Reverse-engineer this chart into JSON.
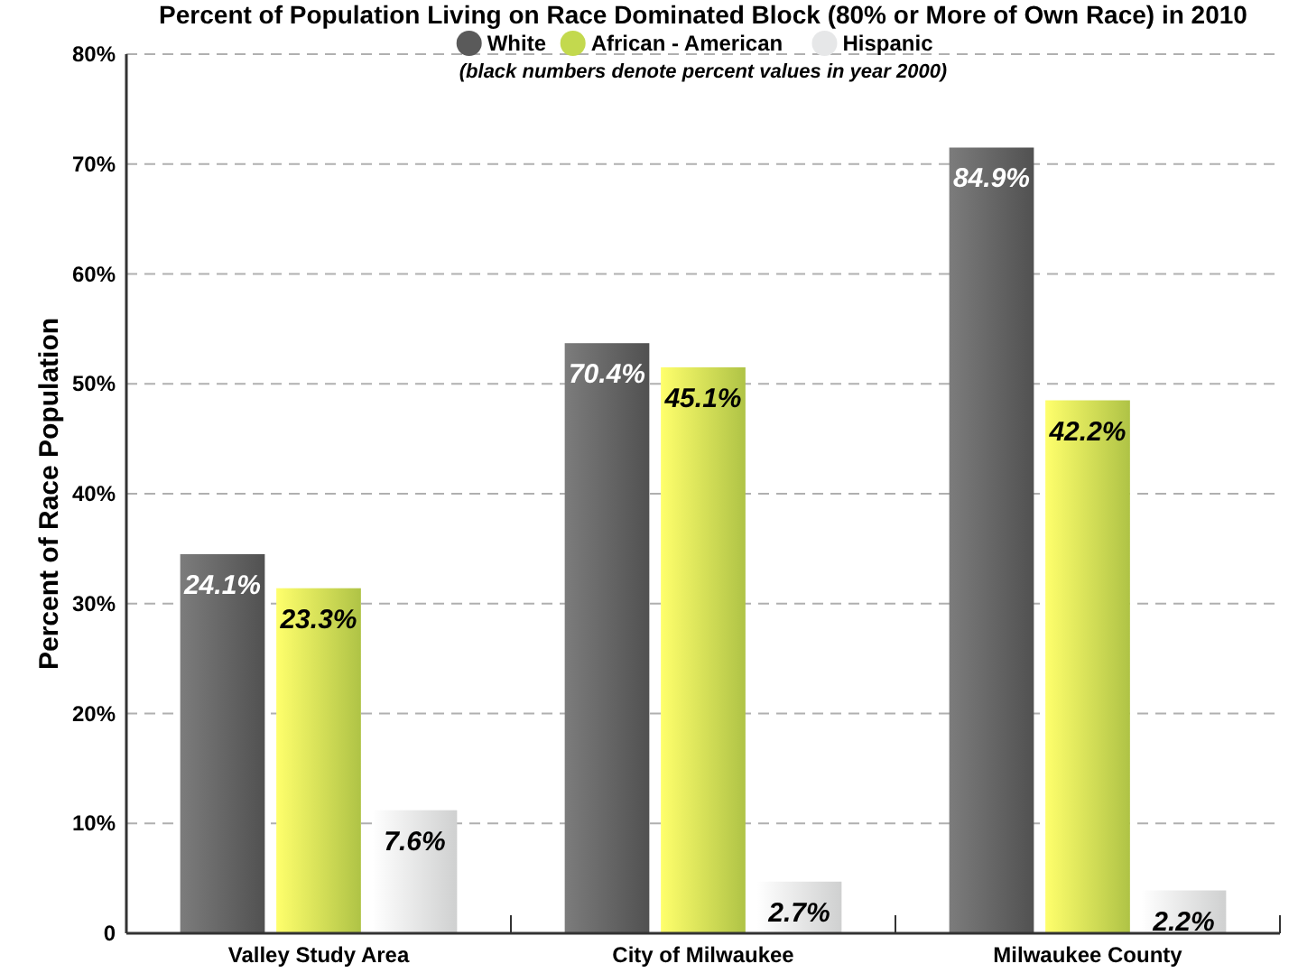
{
  "chart_data": {
    "type": "bar",
    "title": "Percent of Population Living on Race Dominated Block (80% or More of Own Race) in 2010",
    "subtitle": "(black numbers denote percent values in year 2000)",
    "ylabel": "Percent of  Race Population",
    "categories": [
      "Valley Study Area",
      "City of Milwaukee",
      "Milwaukee County"
    ],
    "series": [
      {
        "name": "White",
        "color": "#5a5a5a",
        "values": [
          34.5,
          53.7,
          71.5
        ]
      },
      {
        "name": "African - American",
        "color": "#c3d94e",
        "values": [
          31.4,
          51.5,
          48.5
        ]
      },
      {
        "name": "Hispanic",
        "color": "#e6e7e8",
        "values": [
          11.2,
          4.7,
          3.9
        ]
      }
    ],
    "annotations": [
      "24.1%",
      "70.4%",
      "84.9%",
      "23.3%",
      "45.1%",
      "42.2%",
      "7.6%",
      "2.7%",
      "2.2%"
    ],
    "ylim": [
      0,
      80
    ],
    "yticks": [
      {
        "value": 0,
        "label": "0"
      },
      {
        "value": 10,
        "label": "10%"
      },
      {
        "value": 20,
        "label": "20%"
      },
      {
        "value": 30,
        "label": "30%"
      },
      {
        "value": 40,
        "label": "40%"
      },
      {
        "value": 50,
        "label": "50%"
      },
      {
        "value": 60,
        "label": "60%"
      },
      {
        "value": 70,
        "label": "70%"
      },
      {
        "value": 80,
        "label": "80%"
      }
    ],
    "grid": "y",
    "legend": "top"
  }
}
